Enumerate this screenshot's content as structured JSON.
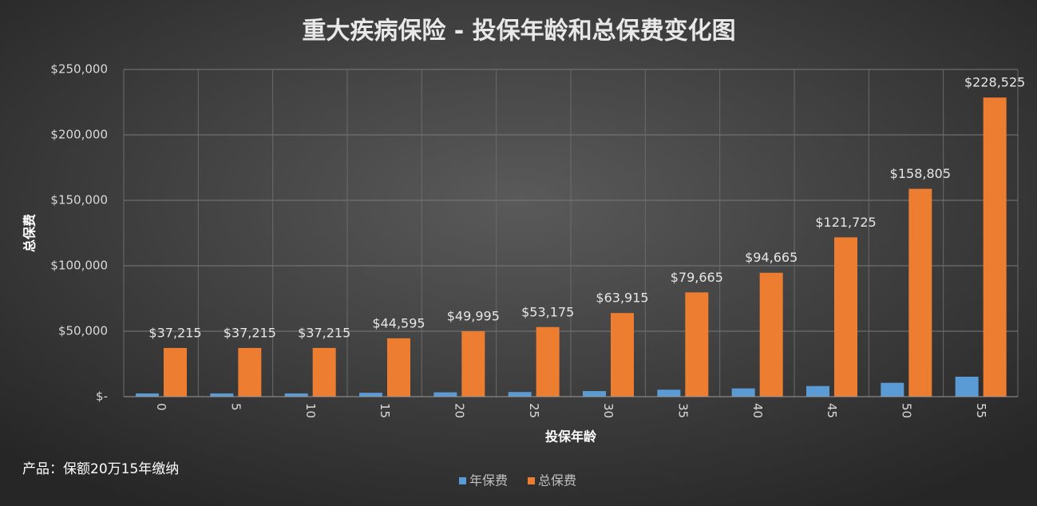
{
  "chart_data": {
    "type": "bar",
    "title": "重大疾病保险 - 投保年龄和总保费变化图",
    "x_label": "投保年龄",
    "y_label": "总保费",
    "note": "产品：保额20万15年缴纳",
    "categories": [
      "0",
      "5",
      "10",
      "15",
      "20",
      "25",
      "30",
      "35",
      "40",
      "45",
      "50",
      "55"
    ],
    "series": [
      {
        "name": "年保费",
        "color": "#5b9bd5",
        "values": [
          2481,
          2481,
          2481,
          2973,
          3333,
          3545,
          4261,
          5311,
          6311,
          8115,
          10587,
          15235
        ]
      },
      {
        "name": "总保费",
        "color": "#ed7d31",
        "values": [
          37215,
          37215,
          37215,
          44595,
          49995,
          53175,
          63915,
          79665,
          94665,
          121725,
          158805,
          228525
        ],
        "value_labels": [
          "$37,215",
          "$37,215",
          "$37,215",
          "$44,595",
          "$49,995",
          "$53,175",
          "$63,915",
          "$79,665",
          "$94,665",
          "$121,725",
          "$158,805",
          "$228,525"
        ]
      }
    ],
    "ylim": [
      0,
      250000
    ],
    "yticks": [
      {
        "value": 0,
        "label": "$-"
      },
      {
        "value": 50000,
        "label": "$50,000"
      },
      {
        "value": 100000,
        "label": "$100,000"
      },
      {
        "value": 150000,
        "label": "$150,000"
      },
      {
        "value": 200000,
        "label": "$200,000"
      },
      {
        "value": 250000,
        "label": "$250,000"
      }
    ],
    "grid": true,
    "legend": "bottom"
  }
}
